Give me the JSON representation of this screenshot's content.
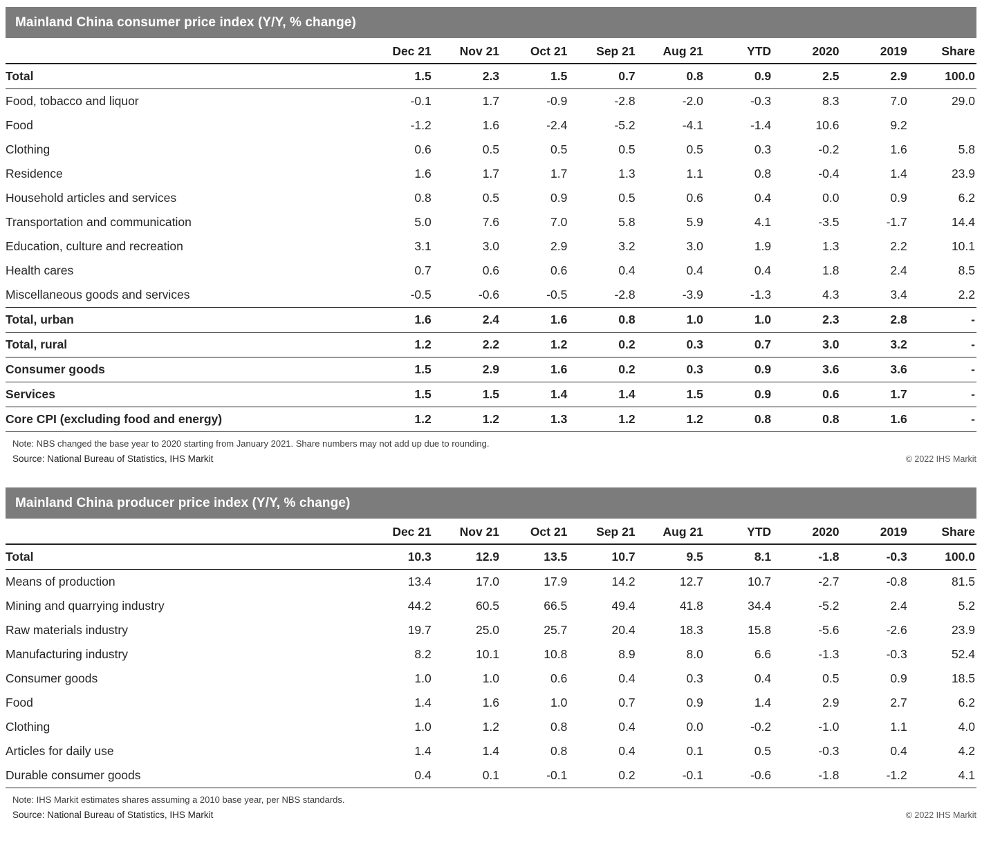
{
  "colors": {
    "title_bar_bg": "#7c7c7c",
    "title_bar_text": "#ffffff",
    "rule": "#231f20",
    "body_text": "#262626"
  },
  "chart_data": [
    {
      "type": "table",
      "title": "Mainland China consumer price index (Y/Y, % change)",
      "columns": [
        "Dec 21",
        "Nov 21",
        "Oct 21",
        "Sep 21",
        "Aug 21",
        "YTD",
        "2020",
        "2019",
        "Share"
      ],
      "rows": [
        {
          "label": "Total",
          "indent": 0,
          "bold": true,
          "rule_below": true,
          "values": [
            "1.5",
            "2.3",
            "1.5",
            "0.7",
            "0.8",
            "0.9",
            "2.5",
            "2.9",
            "100.0"
          ]
        },
        {
          "label": "Food, tobacco and liquor",
          "indent": 1,
          "bold": false,
          "rule_below": false,
          "values": [
            "-0.1",
            "1.7",
            "-0.9",
            "-2.8",
            "-2.0",
            "-0.3",
            "8.3",
            "7.0",
            "29.0"
          ]
        },
        {
          "label": "Food",
          "indent": 2,
          "bold": false,
          "rule_below": false,
          "values": [
            "-1.2",
            "1.6",
            "-2.4",
            "-5.2",
            "-4.1",
            "-1.4",
            "10.6",
            "9.2",
            ""
          ]
        },
        {
          "label": "Clothing",
          "indent": 1,
          "bold": false,
          "rule_below": false,
          "values": [
            "0.6",
            "0.5",
            "0.5",
            "0.5",
            "0.5",
            "0.3",
            "-0.2",
            "1.6",
            "5.8"
          ]
        },
        {
          "label": "Residence",
          "indent": 1,
          "bold": false,
          "rule_below": false,
          "values": [
            "1.6",
            "1.7",
            "1.7",
            "1.3",
            "1.1",
            "0.8",
            "-0.4",
            "1.4",
            "23.9"
          ]
        },
        {
          "label": "Household articles and services",
          "indent": 1,
          "bold": false,
          "rule_below": false,
          "values": [
            "0.8",
            "0.5",
            "0.9",
            "0.5",
            "0.6",
            "0.4",
            "0.0",
            "0.9",
            "6.2"
          ]
        },
        {
          "label": "Transportation and communication",
          "indent": 1,
          "bold": false,
          "rule_below": false,
          "values": [
            "5.0",
            "7.6",
            "7.0",
            "5.8",
            "5.9",
            "4.1",
            "-3.5",
            "-1.7",
            "14.4"
          ]
        },
        {
          "label": "Education, culture and recreation",
          "indent": 1,
          "bold": false,
          "rule_below": false,
          "values": [
            "3.1",
            "3.0",
            "2.9",
            "3.2",
            "3.0",
            "1.9",
            "1.3",
            "2.2",
            "10.1"
          ]
        },
        {
          "label": "Health cares",
          "indent": 1,
          "bold": false,
          "rule_below": false,
          "values": [
            "0.7",
            "0.6",
            "0.6",
            "0.4",
            "0.4",
            "0.4",
            "1.8",
            "2.4",
            "8.5"
          ]
        },
        {
          "label": "Miscellaneous goods and services",
          "indent": 1,
          "bold": false,
          "rule_below": true,
          "values": [
            "-0.5",
            "-0.6",
            "-0.5",
            "-2.8",
            "-3.9",
            "-1.3",
            "4.3",
            "3.4",
            "2.2"
          ]
        },
        {
          "label": "Total, urban",
          "indent": 0,
          "bold": true,
          "rule_below": true,
          "values": [
            "1.6",
            "2.4",
            "1.6",
            "0.8",
            "1.0",
            "1.0",
            "2.3",
            "2.8",
            "-"
          ]
        },
        {
          "label": "Total, rural",
          "indent": 0,
          "bold": true,
          "rule_below": true,
          "values": [
            "1.2",
            "2.2",
            "1.2",
            "0.2",
            "0.3",
            "0.7",
            "3.0",
            "3.2",
            "-"
          ]
        },
        {
          "label": "Consumer goods",
          "indent": 0,
          "bold": true,
          "rule_below": true,
          "values": [
            "1.5",
            "2.9",
            "1.6",
            "0.2",
            "0.3",
            "0.9",
            "3.6",
            "3.6",
            "-"
          ]
        },
        {
          "label": "Services",
          "indent": 0,
          "bold": true,
          "rule_below": true,
          "values": [
            "1.5",
            "1.5",
            "1.4",
            "1.4",
            "1.5",
            "0.9",
            "0.6",
            "1.7",
            "-"
          ]
        },
        {
          "label": "Core CPI (excluding food and energy)",
          "indent": 0,
          "bold": true,
          "rule_below": true,
          "values": [
            "1.2",
            "1.2",
            "1.3",
            "1.2",
            "1.2",
            "0.8",
            "0.8",
            "1.6",
            "-"
          ]
        }
      ],
      "note": "Note: NBS changed the base year to 2020 starting from January 2021. Share numbers may not add up due to rounding.",
      "source": "Source: National Bureau of Statistics, IHS Markit",
      "copyright": "© 2022 IHS Markit"
    },
    {
      "type": "table",
      "title": "Mainland China producer price index (Y/Y, % change)",
      "columns": [
        "Dec 21",
        "Nov 21",
        "Oct 21",
        "Sep 21",
        "Aug 21",
        "YTD",
        "2020",
        "2019",
        "Share"
      ],
      "rows": [
        {
          "label": "Total",
          "indent": 0,
          "bold": true,
          "rule_below": true,
          "values": [
            "10.3",
            "12.9",
            "13.5",
            "10.7",
            "9.5",
            "8.1",
            "-1.8",
            "-0.3",
            "100.0"
          ]
        },
        {
          "label": "Means of production",
          "indent": 1,
          "bold": false,
          "rule_below": false,
          "values": [
            "13.4",
            "17.0",
            "17.9",
            "14.2",
            "12.7",
            "10.7",
            "-2.7",
            "-0.8",
            "81.5"
          ]
        },
        {
          "label": "Mining and quarrying industry",
          "indent": 2,
          "bold": false,
          "rule_below": false,
          "values": [
            "44.2",
            "60.5",
            "66.5",
            "49.4",
            "41.8",
            "34.4",
            "-5.2",
            "2.4",
            "5.2"
          ]
        },
        {
          "label": "Raw materials industry",
          "indent": 2,
          "bold": false,
          "rule_below": false,
          "values": [
            "19.7",
            "25.0",
            "25.7",
            "20.4",
            "18.3",
            "15.8",
            "-5.6",
            "-2.6",
            "23.9"
          ]
        },
        {
          "label": "Manufacturing industry",
          "indent": 2,
          "bold": false,
          "rule_below": false,
          "values": [
            "8.2",
            "10.1",
            "10.8",
            "8.9",
            "8.0",
            "6.6",
            "-1.3",
            "-0.3",
            "52.4"
          ]
        },
        {
          "label": "Consumer goods",
          "indent": 1,
          "bold": false,
          "rule_below": false,
          "values": [
            "1.0",
            "1.0",
            "0.6",
            "0.4",
            "0.3",
            "0.4",
            "0.5",
            "0.9",
            "18.5"
          ]
        },
        {
          "label": "Food",
          "indent": 2,
          "bold": false,
          "rule_below": false,
          "values": [
            "1.4",
            "1.6",
            "1.0",
            "0.7",
            "0.9",
            "1.4",
            "2.9",
            "2.7",
            "6.2"
          ]
        },
        {
          "label": "Clothing",
          "indent": 2,
          "bold": false,
          "rule_below": false,
          "values": [
            "1.0",
            "1.2",
            "0.8",
            "0.4",
            "0.0",
            "-0.2",
            "-1.0",
            "1.1",
            "4.0"
          ]
        },
        {
          "label": "Articles for daily use",
          "indent": 2,
          "bold": false,
          "rule_below": false,
          "values": [
            "1.4",
            "1.4",
            "0.8",
            "0.4",
            "0.1",
            "0.5",
            "-0.3",
            "0.4",
            "4.2"
          ]
        },
        {
          "label": "Durable consumer goods",
          "indent": 2,
          "bold": false,
          "rule_below": true,
          "values": [
            "0.4",
            "0.1",
            "-0.1",
            "0.2",
            "-0.1",
            "-0.6",
            "-1.8",
            "-1.2",
            "4.1"
          ]
        }
      ],
      "note": "Note: IHS Markit estimates shares assuming a 2010 base year, per NBS standards.",
      "source": "Source: National Bureau of Statistics, IHS Markit",
      "copyright": "© 2022 IHS Markit"
    }
  ]
}
